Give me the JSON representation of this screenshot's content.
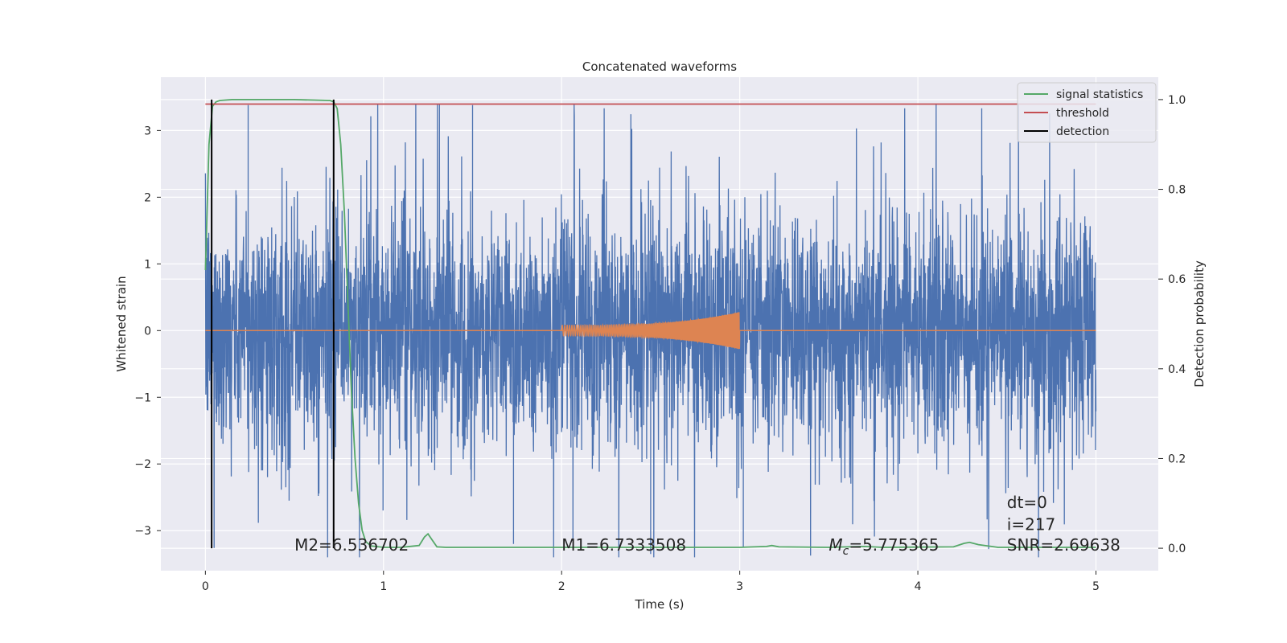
{
  "chart_data": {
    "type": "line",
    "title": "Concatenated waveforms",
    "xlabel": "Time (s)",
    "ylabel": "Whitened strain",
    "y2label": "Detection probability",
    "xlim": [
      -0.25,
      5.35
    ],
    "ylim": [
      -3.6,
      3.8
    ],
    "y2lim": [
      -0.05,
      1.05
    ],
    "xticks": [
      0,
      1,
      2,
      3,
      4,
      5
    ],
    "yticks": [
      -3,
      -2,
      -1,
      0,
      1,
      2,
      3
    ],
    "y2ticks": [
      0.0,
      0.2,
      0.4,
      0.6,
      0.8,
      1.0
    ],
    "xtick_labels": [
      "0",
      "1",
      "2",
      "3",
      "4",
      "5"
    ],
    "ytick_labels": [
      "−3",
      "−2",
      "−1",
      "0",
      "1",
      "2",
      "3"
    ],
    "y2tick_labels": [
      "0.0",
      "0.2",
      "0.4",
      "0.6",
      "0.8",
      "1.0"
    ],
    "grid": true,
    "legend_position": "top-right",
    "legend": [
      {
        "label": "signal statistics",
        "color": "#55a868"
      },
      {
        "label": "threshold",
        "color": "#c44e52"
      },
      {
        "label": "detection",
        "color": "#000000"
      }
    ],
    "series": [
      {
        "axis": "left",
        "color": "#4c72b0",
        "description": "whitened strain noise",
        "x_range": [
          0,
          5
        ],
        "amplitude": 3.4
      },
      {
        "axis": "left",
        "color": "#dd8452",
        "description": "injected chirp",
        "x_range": [
          2.0,
          3.0
        ],
        "start_amplitude": 0.08,
        "end_amplitude": 0.28
      },
      {
        "name": "signal statistics",
        "axis": "right",
        "color": "#55a868",
        "x": [
          0,
          0.02,
          0.04,
          0.06,
          0.08,
          0.15,
          0.5,
          0.7,
          0.72,
          0.74,
          0.76,
          0.78,
          0.8,
          0.82,
          0.84,
          0.86,
          0.88,
          0.9,
          0.93,
          1.0,
          1.1,
          1.2,
          1.23,
          1.25,
          1.27,
          1.3,
          1.35,
          2.0,
          3.0,
          3.15,
          3.18,
          3.22,
          3.5,
          3.7,
          3.8,
          4.2,
          4.26,
          4.29,
          4.34,
          4.45,
          5.0
        ],
        "y": [
          0.62,
          0.9,
          0.985,
          0.995,
          0.998,
          1.0,
          1.0,
          0.998,
          0.995,
          0.98,
          0.9,
          0.75,
          0.55,
          0.35,
          0.2,
          0.1,
          0.04,
          0.015,
          0.005,
          0.002,
          0.002,
          0.006,
          0.025,
          0.032,
          0.02,
          0.003,
          0.002,
          0.002,
          0.002,
          0.004,
          0.006,
          0.003,
          0.002,
          0.004,
          0.002,
          0.003,
          0.011,
          0.013,
          0.008,
          0.002,
          0.002
        ]
      },
      {
        "name": "threshold",
        "axis": "right",
        "color": "#c44e52",
        "x": [
          0,
          5
        ],
        "y": [
          0.99,
          0.99
        ]
      },
      {
        "name": "detection",
        "axis": "right",
        "color": "#000000",
        "vlines_x": [
          0.035,
          0.72
        ],
        "y_range": [
          0.0,
          1.0
        ]
      }
    ],
    "annotations": [
      {
        "text": "M2=6.536702",
        "x": 0.5,
        "y": -3.3
      },
      {
        "text": "M1=6.7333508",
        "x": 2.0,
        "y": -3.3
      },
      {
        "text_italic": "M",
        "sub": "c",
        "text": "=5.775365",
        "x": 3.5,
        "y": -3.3
      },
      {
        "text": "SNR=2.69638",
        "x": 4.5,
        "y": -3.3
      },
      {
        "text": "i=217",
        "x": 4.5,
        "y": -2.99
      },
      {
        "text": "dt=0",
        "x": 4.5,
        "y": -2.66
      }
    ]
  }
}
